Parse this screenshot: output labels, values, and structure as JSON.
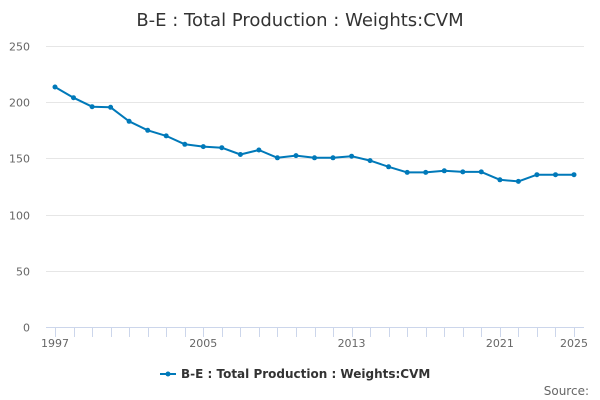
{
  "chart_data": {
    "type": "line",
    "title": "B-E : Total Production : Weights:CVM",
    "xlabel": "",
    "ylabel": "",
    "x": [
      1997,
      1998,
      1999,
      2000,
      2001,
      2002,
      2003,
      2004,
      2005,
      2006,
      2007,
      2008,
      2009,
      2010,
      2011,
      2012,
      2013,
      2014,
      2015,
      2016,
      2017,
      2018,
      2019,
      2020,
      2021,
      2022,
      2023,
      2024,
      2025
    ],
    "x_ticks": [
      1997,
      2005,
      2013,
      2021,
      2025
    ],
    "xlim": [
      1997,
      2025
    ],
    "ylim": [
      0,
      250
    ],
    "y_ticks": [
      0,
      50,
      100,
      150,
      200,
      250
    ],
    "grid": true,
    "series": [
      {
        "name": "B-E : Total Production : Weights:CVM",
        "color": "#0079b9",
        "values": [
          213.5,
          204,
          196,
          195.5,
          183,
          175,
          170,
          162.5,
          160.5,
          159.5,
          153.5,
          157.5,
          150.5,
          152.5,
          150.5,
          150.5,
          152,
          148,
          142.5,
          137.5,
          137.5,
          139,
          138,
          138,
          131,
          129.5,
          135.5,
          135.5,
          135.5
        ]
      }
    ],
    "legend": {
      "position": "bottom-center"
    },
    "source_label": "Source:"
  }
}
